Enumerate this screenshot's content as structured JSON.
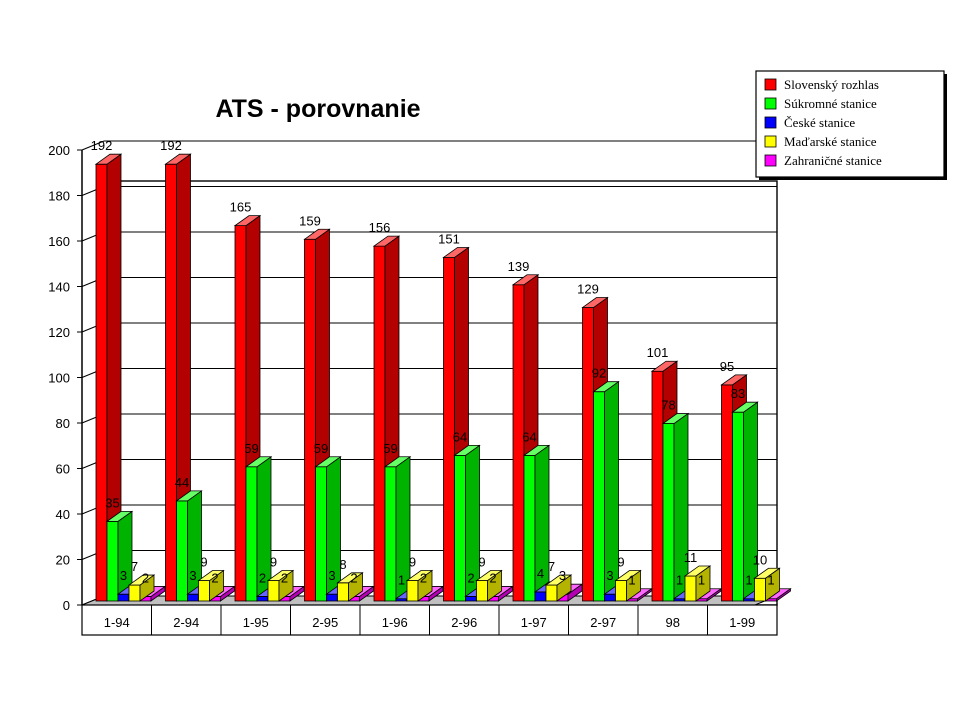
{
  "chart_data": {
    "type": "bar",
    "title": "ATS - porovnanie",
    "xlabel": "",
    "ylabel": "",
    "ylim": [
      0,
      200
    ],
    "yticks": [
      0,
      20,
      40,
      60,
      80,
      100,
      120,
      140,
      160,
      180,
      200
    ],
    "grid": true,
    "legend": "top-right",
    "categories": [
      "1-94",
      "2-94",
      "1-95",
      "2-95",
      "1-96",
      "2-96",
      "1-97",
      "2-97",
      "98",
      "1-99"
    ],
    "series": [
      {
        "name": "Slovenský rozhlas",
        "color": "#ff0000",
        "values": [
          192,
          192,
          165,
          159,
          156,
          151,
          139,
          129,
          101,
          95
        ]
      },
      {
        "name": "Súkromné stanice",
        "color": "#00ff00",
        "values": [
          35,
          44,
          59,
          59,
          59,
          64,
          64,
          92,
          78,
          83
        ]
      },
      {
        "name": "České stanice",
        "color": "#0000ff",
        "values": [
          3,
          3,
          2,
          3,
          1,
          2,
          4,
          3,
          1,
          1
        ]
      },
      {
        "name": "Maďarské stanice",
        "color": "#ffff00",
        "values": [
          7,
          9,
          9,
          8,
          9,
          9,
          7,
          9,
          11,
          10
        ]
      },
      {
        "name": "Zahraničné stanice",
        "color": "#ff00ff",
        "values": [
          2,
          2,
          2,
          2,
          2,
          2,
          3,
          1,
          1,
          1
        ]
      }
    ]
  }
}
